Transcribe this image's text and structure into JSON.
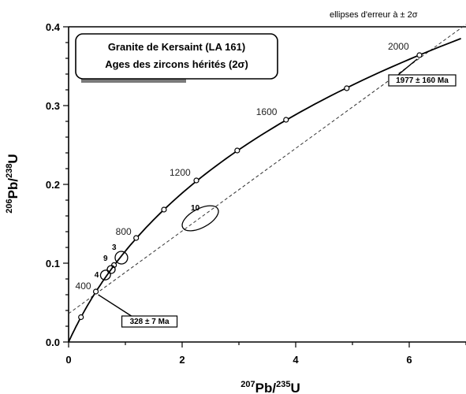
{
  "chart_data": {
    "type": "scatter",
    "title_line1": "Granite de Kersaint (LA 161)",
    "title_line2": "Ages des zircons hérités (2σ)",
    "note": "ellipses d'erreur à ± 2σ",
    "xlabel_html": {
      "sup1": "207",
      "base1": "Pb/",
      "sup2": "235",
      "base2": "U"
    },
    "ylabel_html": {
      "sup1": "206",
      "base1": "Pb/",
      "sup2": "238",
      "base2": "U"
    },
    "xlim": [
      0,
      7
    ],
    "ylim": [
      0,
      0.4
    ],
    "xticks": [
      0,
      2,
      4,
      6
    ],
    "xtick_labels": [
      "0",
      "2",
      "4",
      "6"
    ],
    "yticks": [
      0,
      0.1,
      0.2,
      0.3,
      0.4
    ],
    "ytick_labels": [
      "0.0",
      "0.1",
      "0.2",
      "0.3",
      "0.4"
    ],
    "concordia": {
      "markers": [
        {
          "age": 200,
          "x": 0.218,
          "y": 0.0315
        },
        {
          "age": 400,
          "x": 0.48,
          "y": 0.064
        },
        {
          "age": 600,
          "x": 0.8,
          "y": 0.0976
        },
        {
          "age": 800,
          "x": 1.19,
          "y": 0.132
        },
        {
          "age": 1000,
          "x": 1.68,
          "y": 0.168
        },
        {
          "age": 1200,
          "x": 2.25,
          "y": 0.205
        },
        {
          "age": 1400,
          "x": 2.97,
          "y": 0.243
        },
        {
          "age": 1600,
          "x": 3.83,
          "y": 0.282
        },
        {
          "age": 1800,
          "x": 4.9,
          "y": 0.322
        },
        {
          "age": 2000,
          "x": 6.18,
          "y": 0.364
        }
      ],
      "age_labels": [
        {
          "text": "400",
          "age": 400
        },
        {
          "text": "800",
          "age": 800
        },
        {
          "text": "1200",
          "age": 1200
        },
        {
          "text": "1600",
          "age": 1600
        },
        {
          "text": "2000",
          "age": 2000
        }
      ]
    },
    "discordia": {
      "x1": 0,
      "y1": 0.036,
      "x2": 7,
      "y2": 0.403
    },
    "ellipses": [
      {
        "label": "4",
        "x": 0.65,
        "y": 0.085,
        "rx": 0.09,
        "ry": 0.006,
        "rot": -35
      },
      {
        "label": "9",
        "x": 0.75,
        "y": 0.092,
        "rx": 0.07,
        "ry": 0.005,
        "rot": -35
      },
      {
        "label": "3",
        "x": 0.93,
        "y": 0.107,
        "rx": 0.11,
        "ry": 0.008,
        "rot": -40
      },
      {
        "label": "10",
        "x": 2.32,
        "y": 0.157,
        "rx": 0.35,
        "ry": 0.012,
        "rot": -28
      }
    ],
    "intercepts": [
      {
        "label": "328 ± 7 Ma",
        "x": 0.48,
        "y": 0.064
      },
      {
        "label": "1977 ± 160 Ma",
        "x": 6.18,
        "y": 0.364
      }
    ],
    "grid": false
  }
}
